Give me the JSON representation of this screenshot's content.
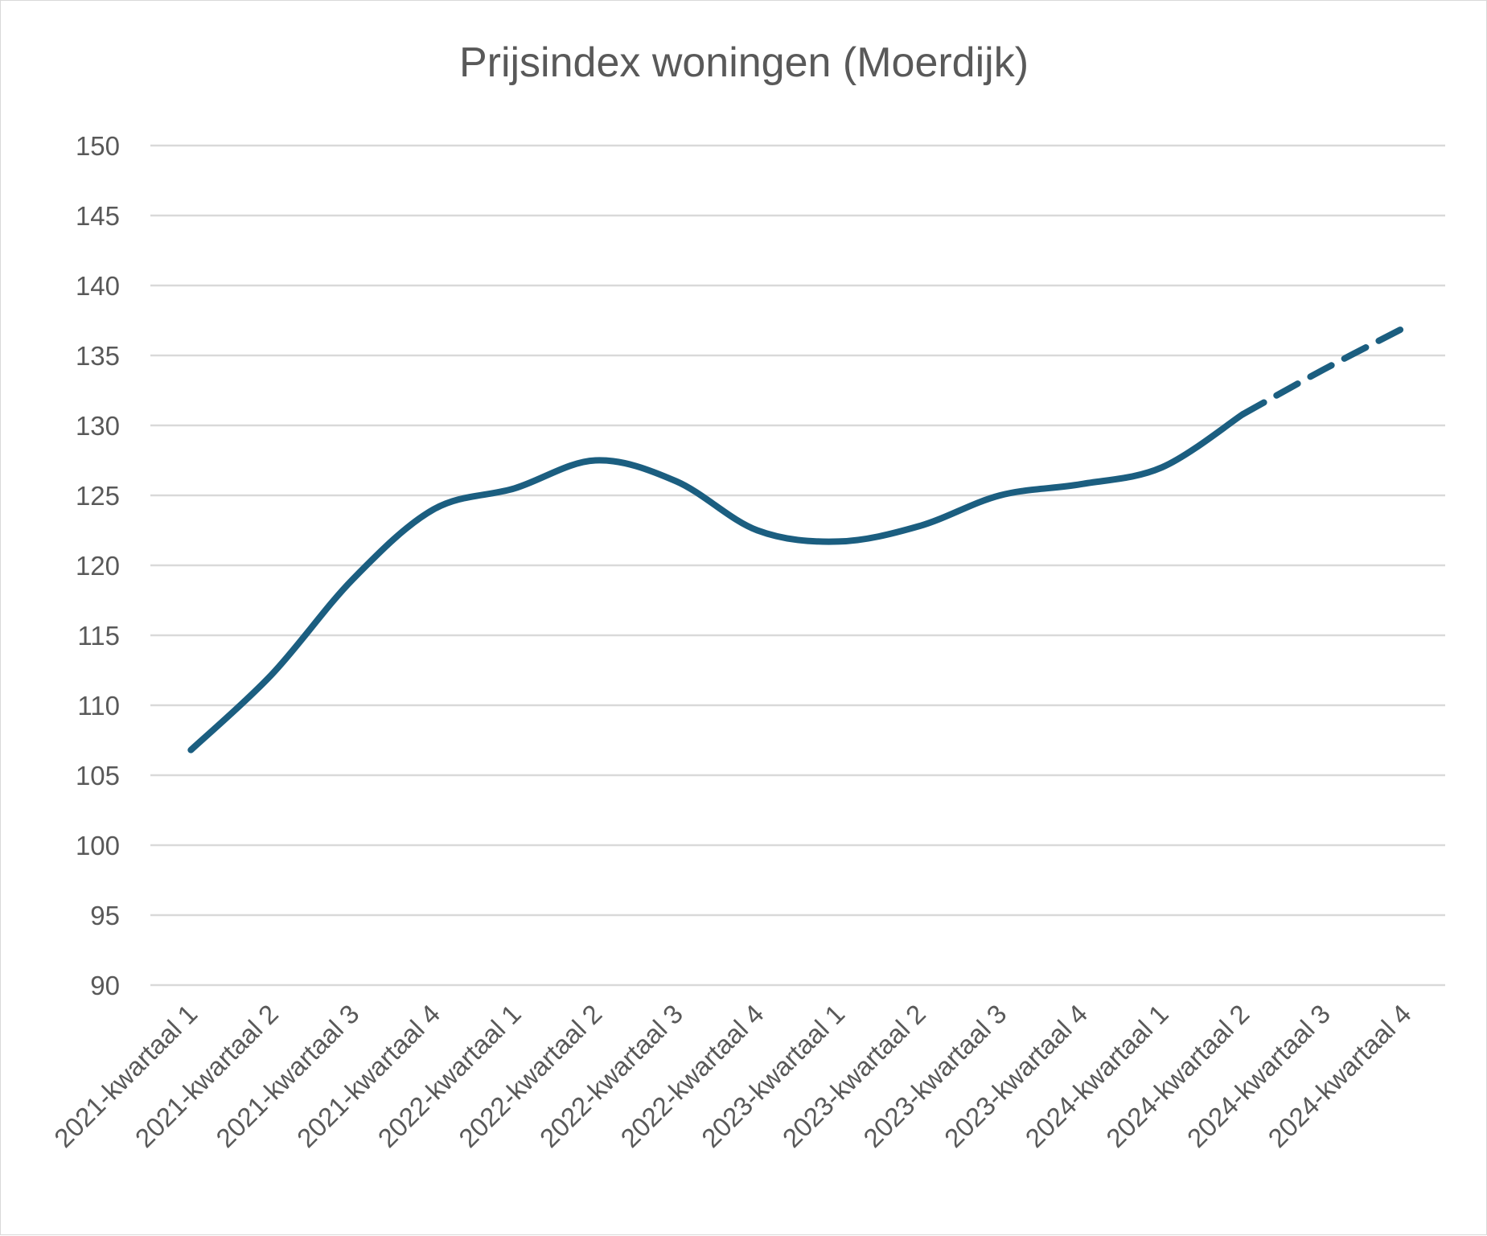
{
  "chart_data": {
    "type": "line",
    "title": "Prijsindex woningen (Moerdijk)",
    "xlabel": "",
    "ylabel": "",
    "ylim": [
      90,
      150
    ],
    "ytick_step": 5,
    "y_ticks": [
      "90",
      "95",
      "100",
      "105",
      "110",
      "115",
      "120",
      "125",
      "130",
      "135",
      "140",
      "145",
      "150"
    ],
    "grid": true,
    "legend": "none",
    "categories": [
      "2021-kwartaal 1",
      "2021-kwartaal 2",
      "2021-kwartaal 3",
      "2021-kwartaal 4",
      "2022-kwartaal 1",
      "2022-kwartaal 2",
      "2022-kwartaal 3",
      "2022-kwartaal 4",
      "2023-kwartaal 1",
      "2023-kwartaal 2",
      "2023-kwartaal 3",
      "2023-kwartaal 4",
      "2024-kwartaal 1",
      "2024-kwartaal 2",
      "2024-kwartaal 3",
      "2024-kwartaal 4"
    ],
    "series": [
      {
        "style": "solid",
        "color": "#1b5e80",
        "values": [
          106.8,
          112.2,
          119.0,
          124.0,
          125.5,
          127.5,
          126.0,
          122.5,
          121.7,
          122.8,
          125.0,
          125.8,
          127.0,
          130.8,
          null,
          null
        ]
      },
      {
        "style": "dashed",
        "color": "#1b5e80",
        "values": [
          null,
          null,
          null,
          null,
          null,
          null,
          null,
          null,
          null,
          null,
          null,
          null,
          null,
          130.8,
          134.0,
          137.0
        ]
      }
    ]
  }
}
